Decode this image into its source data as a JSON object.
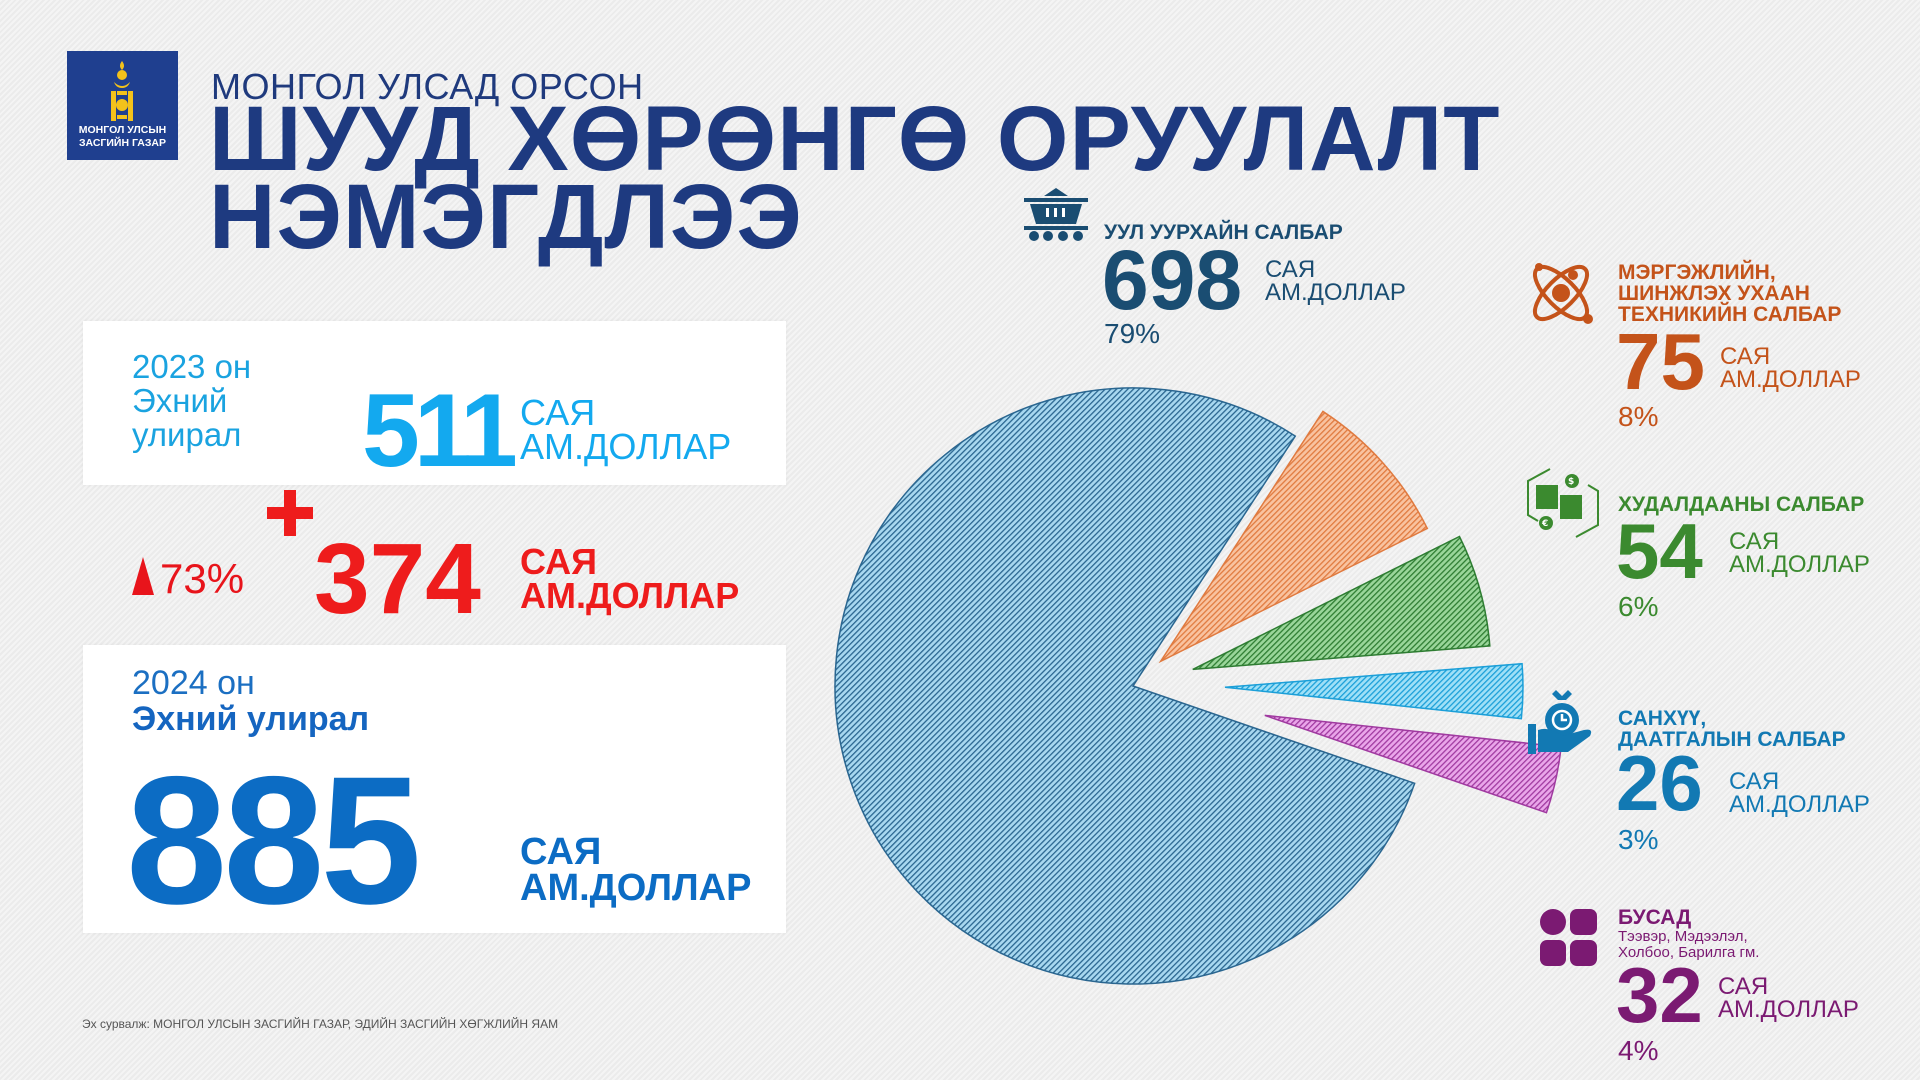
{
  "logo": {
    "text": "МОНГОЛ УЛСЫН\nЗАСГИЙН ГАЗАР"
  },
  "header": {
    "subtitle": "МОНГОЛ УЛСАД ОРСОН",
    "title": "ШУУД ХӨРӨНГӨ ОРУУЛАЛТ\nНЭМЭГДЛЭЭ"
  },
  "summary": {
    "y2023": {
      "period": "2023 он\nЭхний\nулирал",
      "value": "511",
      "unit": "САЯ\nАМ.ДОЛЛАР"
    },
    "increase": {
      "percent": "73%",
      "value": "374",
      "unit": "САЯ\nАМ.ДОЛЛАР"
    },
    "y2024": {
      "year": "2024 он",
      "period": "Эхний улирал",
      "value": "885",
      "unit": "САЯ\nАМ.ДОЛЛАР"
    }
  },
  "source": "Эх сурвалж: МОНГОЛ УЛСЫН ЗАСГИЙН ГАЗАР, ЭДИЙН ЗАСГИЙН ХӨГЖЛИЙН ЯАМ",
  "unit_label": "САЯ\nАМ.ДОЛЛАР",
  "chart_data": {
    "type": "pie",
    "title": "ШУУД ХӨРӨНГӨ ОРУУЛАЛТ",
    "total": 885,
    "unit": "сая ам.доллар",
    "slices": [
      {
        "label": "УУЛ УУРХАЙН САЛБАР",
        "value": 698,
        "percent": "79%",
        "color": "#1a4d72",
        "fill": "#a8d8f0",
        "line": "#2a6690"
      },
      {
        "label": "МЭРГЭЖЛИЙН,\nШИНЖЛЭХ УХААН\nТЕХНИКИЙН САЛБАР",
        "value": 75,
        "percent": "8%",
        "color": "#c4531a",
        "fill": "#f9c3a0",
        "line": "#e07a3f"
      },
      {
        "label": "ХУДАЛДААНЫ САЛБАР",
        "value": 54,
        "percent": "6%",
        "color": "#3b8a2f",
        "fill": "#9ad69a",
        "line": "#2e7d32"
      },
      {
        "label": "САНХҮҮ,\nДААТГАЛЫН САЛБАР",
        "value": 26,
        "percent": "3%",
        "color": "#1279b3",
        "fill": "#9fe0f7",
        "line": "#1b9fd8"
      },
      {
        "label": "БУСАД",
        "sublabel": "Тээвэр, Мэдээлэл,\nХолбоо, Барилга гм.",
        "value": 32,
        "percent": "4%",
        "color": "#7b1a72",
        "fill": "#eaa6ea",
        "line": "#a03aa0"
      }
    ]
  }
}
